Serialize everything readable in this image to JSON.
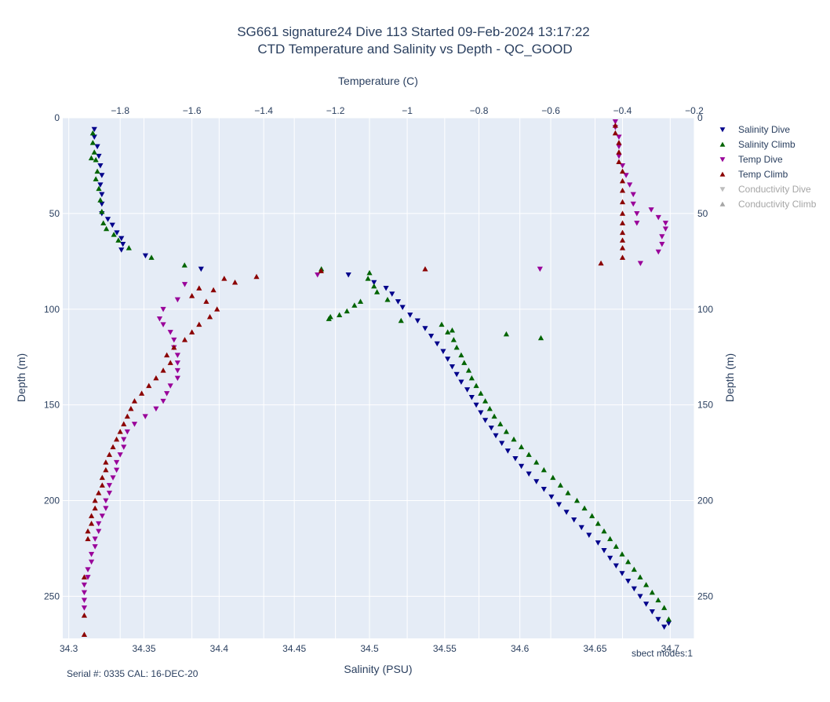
{
  "colors": {
    "salinity_dive": "#00008b",
    "salinity_climb": "#006400",
    "temp_dive": "#990099",
    "temp_climb": "#8b0000",
    "conductivity_dive": "#bdbdbd",
    "conductivity_climb": "#a6a6a6",
    "plot_bg": "#e5ecf6",
    "grid": "#ffffff"
  },
  "footer": {
    "serial": "Serial #: 0335  CAL: 16-DEC-20",
    "modes": "sbect modes:1"
  },
  "chart_data": {
    "type": "scatter",
    "title": "SG661 signature24 Dive 113 Started 09-Feb-2024 13:17:22",
    "subtitle": "CTD Temperature and Salinity vs Depth - QC_GOOD",
    "xlabel": "Salinity (PSU)",
    "x2label": "Temperature (C)",
    "ylabel": "Depth (m)",
    "y2label": "Depth (m)",
    "xlim": [
      34.296,
      34.716
    ],
    "x2lim": [
      -1.96,
      -0.2
    ],
    "ylim": [
      272,
      0
    ],
    "grid": true,
    "legend_position": "top-right",
    "xticks": [
      34.3,
      34.35,
      34.4,
      34.45,
      34.5,
      34.55,
      34.6,
      34.65,
      34.7
    ],
    "xtick_labels": [
      "34.3",
      "34.35",
      "34.4",
      "34.45",
      "34.5",
      "34.55",
      "34.6",
      "34.65",
      "34.7"
    ],
    "x2ticks": [
      -1.8,
      -1.6,
      -1.4,
      -1.2,
      -1,
      -0.8,
      -0.6,
      -0.4,
      -0.2
    ],
    "x2tick_labels": [
      "−1.8",
      "−1.6",
      "−1.4",
      "−1.2",
      "−1",
      "−0.8",
      "−0.6",
      "−0.4",
      "−0.2"
    ],
    "yticks": [
      0,
      50,
      100,
      150,
      200,
      250
    ],
    "ytick_labels": [
      "0",
      "50",
      "100",
      "150",
      "200",
      "250"
    ],
    "series": [
      {
        "name": "Salinity Dive",
        "axis": "salinity",
        "marker": "triangle-down",
        "x": [
          34.317,
          34.317,
          34.319,
          34.32,
          34.321,
          34.322,
          34.321,
          34.322,
          34.322,
          34.322,
          34.326,
          34.329,
          34.332,
          34.335,
          34.336,
          34.335,
          34.351,
          34.388,
          34.486,
          34.503,
          34.511,
          34.515,
          34.519,
          34.522,
          34.527,
          34.532,
          34.537,
          34.541,
          34.545,
          34.549,
          34.552,
          34.555,
          34.558,
          34.561,
          34.565,
          34.568,
          34.571,
          34.574,
          34.577,
          34.581,
          34.584,
          34.588,
          34.592,
          34.597,
          34.601,
          34.606,
          34.611,
          34.616,
          34.621,
          34.626,
          34.631,
          34.636,
          34.641,
          34.646,
          34.652,
          34.656,
          34.66,
          34.664,
          34.668,
          34.672,
          34.676,
          34.68,
          34.684,
          34.688,
          34.692,
          34.696,
          34.699
        ],
        "y": [
          6,
          10,
          15,
          20,
          25,
          30,
          35,
          40,
          45,
          50,
          53,
          56,
          60,
          63,
          66,
          69,
          72,
          79,
          82,
          86,
          89,
          92,
          96,
          99,
          103,
          106,
          110,
          114,
          118,
          122,
          126,
          130,
          134,
          138,
          142,
          146,
          150,
          154,
          158,
          162,
          166,
          170,
          174,
          178,
          182,
          186,
          190,
          194,
          198,
          202,
          206,
          210,
          214,
          218,
          222,
          226,
          230,
          234,
          238,
          242,
          246,
          250,
          254,
          258,
          262,
          266,
          264
        ]
      },
      {
        "name": "Salinity Climb",
        "axis": "salinity",
        "marker": "triangle-up",
        "x": [
          34.316,
          34.316,
          34.317,
          34.318,
          34.315,
          34.319,
          34.318,
          34.32,
          34.321,
          34.322,
          34.323,
          34.325,
          34.33,
          34.333,
          34.34,
          34.355,
          34.377,
          34.468,
          34.5,
          34.499,
          34.503,
          34.505,
          34.512,
          34.494,
          34.49,
          34.485,
          34.48,
          34.474,
          34.473,
          34.521,
          34.555,
          34.591,
          34.614,
          34.548,
          34.552,
          34.556,
          34.558,
          34.561,
          34.563,
          34.566,
          34.568,
          34.571,
          34.574,
          34.577,
          34.58,
          34.583,
          34.587,
          34.591,
          34.596,
          34.601,
          34.606,
          34.611,
          34.616,
          34.622,
          34.627,
          34.632,
          34.638,
          34.643,
          34.648,
          34.652,
          34.656,
          34.66,
          34.664,
          34.668,
          34.672,
          34.676,
          34.68,
          34.684,
          34.688,
          34.692,
          34.696,
          34.699
        ],
        "y": [
          8,
          13,
          18,
          22,
          21,
          28,
          32,
          37,
          43,
          49,
          55,
          58,
          61,
          64,
          68,
          73,
          77,
          79,
          81,
          84,
          88,
          91,
          95,
          96,
          98,
          101,
          103,
          104,
          105,
          106,
          111,
          113,
          115,
          108,
          112,
          116,
          120,
          124,
          128,
          132,
          136,
          140,
          144,
          148,
          152,
          156,
          160,
          164,
          168,
          172,
          176,
          180,
          184,
          188,
          192,
          196,
          200,
          204,
          208,
          212,
          216,
          220,
          224,
          228,
          232,
          236,
          240,
          244,
          248,
          252,
          256,
          262
        ]
      },
      {
        "name": "Temp Dive",
        "axis": "temperature",
        "marker": "triangle-down",
        "x": [
          -0.42,
          -0.42,
          -0.41,
          -0.41,
          -0.41,
          -0.4,
          -0.39,
          -0.38,
          -0.37,
          -0.37,
          -0.36,
          -0.36,
          -0.32,
          -0.3,
          -0.28,
          -0.28,
          -0.29,
          -0.29,
          -0.3,
          -0.35,
          -0.63,
          -1.25,
          -1.62,
          -1.64,
          -1.68,
          -1.69,
          -1.68,
          -1.66,
          -1.65,
          -1.65,
          -1.64,
          -1.64,
          -1.64,
          -1.64,
          -1.66,
          -1.67,
          -1.68,
          -1.7,
          -1.73,
          -1.76,
          -1.78,
          -1.79,
          -1.79,
          -1.8,
          -1.81,
          -1.81,
          -1.82,
          -1.83,
          -1.83,
          -1.84,
          -1.84,
          -1.85,
          -1.86,
          -1.86,
          -1.87,
          -1.87,
          -1.88,
          -1.88,
          -1.89,
          -1.89,
          -1.9,
          -1.9,
          -1.9,
          -1.9
        ],
        "y": [
          2,
          5,
          10,
          15,
          20,
          25,
          30,
          35,
          40,
          45,
          50,
          55,
          48,
          52,
          55,
          58,
          62,
          66,
          70,
          76,
          79,
          82,
          87,
          95,
          100,
          105,
          108,
          112,
          116,
          120,
          124,
          128,
          132,
          136,
          140,
          144,
          148,
          152,
          156,
          160,
          164,
          168,
          172,
          176,
          180,
          184,
          188,
          192,
          196,
          200,
          204,
          208,
          212,
          216,
          220,
          224,
          228,
          232,
          236,
          240,
          244,
          248,
          252,
          256
        ]
      },
      {
        "name": "Temp Climb",
        "axis": "temperature",
        "marker": "triangle-up",
        "x": [
          -0.42,
          -0.42,
          -0.41,
          -0.41,
          -0.41,
          -0.4,
          -0.4,
          -0.4,
          -0.4,
          -0.4,
          -0.4,
          -0.4,
          -0.4,
          -0.4,
          -0.4,
          -0.46,
          -0.95,
          -1.24,
          -1.42,
          -1.48,
          -1.51,
          -1.54,
          -1.58,
          -1.6,
          -1.56,
          -1.53,
          -1.55,
          -1.58,
          -1.6,
          -1.62,
          -1.65,
          -1.67,
          -1.66,
          -1.68,
          -1.7,
          -1.72,
          -1.74,
          -1.76,
          -1.77,
          -1.78,
          -1.79,
          -1.8,
          -1.81,
          -1.82,
          -1.83,
          -1.84,
          -1.84,
          -1.85,
          -1.85,
          -1.86,
          -1.87,
          -1.87,
          -1.88,
          -1.88,
          -1.89,
          -1.89,
          -1.9,
          -1.9,
          -1.9
        ],
        "y": [
          4,
          8,
          13,
          18,
          23,
          28,
          33,
          38,
          44,
          50,
          55,
          60,
          64,
          68,
          73,
          76,
          79,
          80,
          83,
          86,
          84,
          90,
          89,
          93,
          96,
          100,
          104,
          108,
          112,
          116,
          120,
          124,
          128,
          132,
          136,
          140,
          144,
          148,
          152,
          156,
          160,
          164,
          168,
          172,
          176,
          180,
          184,
          188,
          192,
          196,
          200,
          204,
          208,
          212,
          216,
          220,
          240,
          260,
          270
        ]
      },
      {
        "name": "Conductivity Dive",
        "axis": "none",
        "marker": "triangle-down",
        "visible": "legendonly",
        "x": [],
        "y": []
      },
      {
        "name": "Conductivity Climb",
        "axis": "none",
        "marker": "triangle-up",
        "visible": "legendonly",
        "x": [],
        "y": []
      }
    ]
  }
}
